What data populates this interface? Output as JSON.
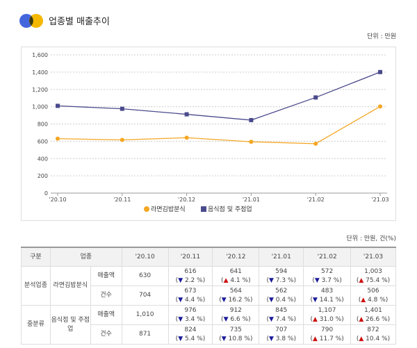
{
  "header": {
    "title": "업종별 매출추이",
    "unit": "단위 : 만원",
    "logo_colors": [
      "#4466dd",
      "#f5b800"
    ]
  },
  "chart_data": {
    "type": "line",
    "categories": [
      "'20.10",
      "'20.11",
      "'20.12",
      "'21.01",
      "'21.02",
      "'21.03"
    ],
    "ylim": [
      0,
      1600
    ],
    "yticks": [
      0,
      200,
      400,
      600,
      800,
      1000,
      1200,
      1400,
      1600
    ],
    "ytick_labels": [
      "0",
      "200",
      "400",
      "600",
      "800",
      "1,000",
      "1,200",
      "1,400",
      "1,600"
    ],
    "grid": true,
    "legend": "bottom",
    "series": [
      {
        "name": "라면김밥분식",
        "color": "#f5a623",
        "values": [
          630,
          616,
          641,
          594,
          572,
          1003
        ]
      },
      {
        "name": "음식점 및 주점업",
        "color": "#4a4a8c",
        "values": [
          1010,
          976,
          912,
          845,
          1107,
          1401
        ]
      }
    ]
  },
  "table": {
    "unit": "단위 : 만원, 건(%)",
    "headers": [
      "구분",
      "업종",
      "'20.10",
      "'20.11",
      "'20.12",
      "'21.01",
      "'21.02",
      "'21.03"
    ],
    "groups": [
      {
        "category": "분석업종",
        "industry": "라면김밥분식",
        "rows": [
          {
            "metric": "매출액",
            "base": "630",
            "cells": [
              {
                "v": "616",
                "d": "down",
                "p": "2.2 %"
              },
              {
                "v": "641",
                "d": "up",
                "p": "4.1 %"
              },
              {
                "v": "594",
                "d": "down",
                "p": "7.3 %"
              },
              {
                "v": "572",
                "d": "down",
                "p": "3.7 %"
              },
              {
                "v": "1,003",
                "d": "up",
                "p": "75.4 %"
              }
            ]
          },
          {
            "metric": "건수",
            "base": "704",
            "cells": [
              {
                "v": "673",
                "d": "down",
                "p": "4.4 %"
              },
              {
                "v": "564",
                "d": "down",
                "p": "16.2 %"
              },
              {
                "v": "562",
                "d": "down",
                "p": "0.4 %"
              },
              {
                "v": "483",
                "d": "down",
                "p": "14.1 %"
              },
              {
                "v": "506",
                "d": "up",
                "p": "4.8 %"
              }
            ]
          }
        ]
      },
      {
        "category": "중분류",
        "industry": "음식점 및 주점업",
        "rows": [
          {
            "metric": "매출액",
            "base": "1,010",
            "cells": [
              {
                "v": "976",
                "d": "down",
                "p": "3.4 %"
              },
              {
                "v": "912",
                "d": "down",
                "p": "6.6 %"
              },
              {
                "v": "845",
                "d": "down",
                "p": "7.4 %"
              },
              {
                "v": "1,107",
                "d": "up",
                "p": "31.0 %"
              },
              {
                "v": "1,401",
                "d": "up",
                "p": "26.6 %"
              }
            ]
          },
          {
            "metric": "건수",
            "base": "871",
            "cells": [
              {
                "v": "824",
                "d": "down",
                "p": "5.4 %"
              },
              {
                "v": "735",
                "d": "down",
                "p": "10.8 %"
              },
              {
                "v": "707",
                "d": "down",
                "p": "3.8 %"
              },
              {
                "v": "790",
                "d": "up",
                "p": "11.7 %"
              },
              {
                "v": "872",
                "d": "up",
                "p": "10.4 %"
              }
            ]
          }
        ]
      }
    ]
  }
}
